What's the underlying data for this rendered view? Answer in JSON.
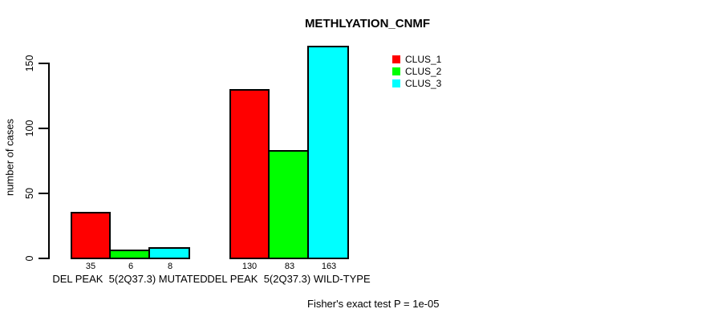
{
  "chart_data": {
    "type": "bar",
    "title": "METHLYATION_CNMF",
    "ylabel": "number of cases",
    "categories": [
      "DEL PEAK  5(2Q37.3) MUTATED",
      "DEL PEAK  5(2Q37.3) WILD-TYPE"
    ],
    "series": [
      {
        "name": "CLUS_1",
        "color": "#ff0000",
        "values": [
          35,
          130
        ]
      },
      {
        "name": "CLUS_2",
        "color": "#00ff00",
        "values": [
          6,
          83
        ]
      },
      {
        "name": "CLUS_3",
        "color": "#00ffff",
        "values": [
          8,
          163
        ]
      }
    ],
    "yticks": [
      0,
      50,
      100,
      150
    ],
    "ylim": [
      0,
      163
    ],
    "show_bar_values": true,
    "grid": false,
    "legend_position": "top-right",
    "annotation": "Fisher's exact test P = 1e-05",
    "axis_color": "#000000",
    "background_color": "#ffffff"
  }
}
